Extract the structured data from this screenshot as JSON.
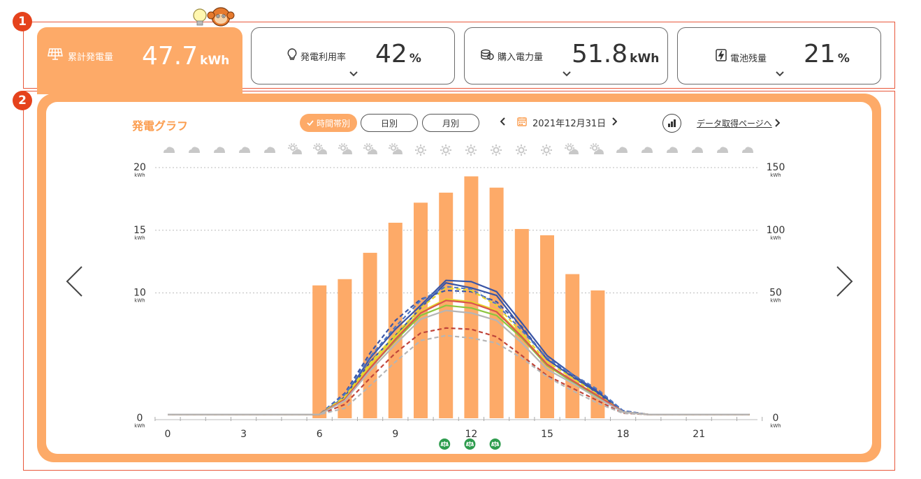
{
  "markers": [
    "1",
    "2"
  ],
  "cards": [
    {
      "id": "cumulative",
      "label": "累計発電量",
      "value": "47.7",
      "unit": "kWh",
      "icon": "solar-panel-icon",
      "active": true
    },
    {
      "id": "usage",
      "label": "発電利用率",
      "value": "42",
      "unit": "%",
      "icon": "lightbulb-icon",
      "active": false
    },
    {
      "id": "purchase",
      "label": "購入電力量",
      "value": "51.8",
      "unit": "kWh",
      "icon": "coins-icon",
      "active": false
    },
    {
      "id": "battery",
      "label": "電池残量",
      "value": "21",
      "unit": "%",
      "icon": "battery-bolt-icon",
      "active": false
    }
  ],
  "graph": {
    "title": "発電グラフ",
    "view_tabs": [
      "時間帯別",
      "日別",
      "月別"
    ],
    "active_tab": "時間帯別",
    "date": "2021年12月31日",
    "data_link": "データ取得ページへ"
  },
  "weather": [
    "cloudy",
    "cloudy",
    "cloudy",
    "cloudy",
    "cloudy",
    "partly-sunny",
    "partly-sunny",
    "partly-sunny",
    "partly-sunny",
    "partly-sunny",
    "sunny",
    "sunny",
    "sunny",
    "sunny",
    "sunny",
    "sunny",
    "partly-sunny",
    "partly-sunny",
    "cloudy",
    "cloudy",
    "cloudy",
    "cloudy",
    "cloudy",
    "cloudy"
  ],
  "colors": {
    "accent": "#fdaa68",
    "title": "#fb9d4f",
    "marker": "#e5421c",
    "event": "#2e9c4e"
  },
  "chart_data": {
    "type": "bar",
    "x": [
      0,
      1,
      2,
      3,
      4,
      5,
      6,
      7,
      8,
      9,
      10,
      11,
      12,
      13,
      14,
      15,
      16,
      17,
      18,
      19,
      20,
      21,
      22,
      23
    ],
    "xticks": [
      0,
      3,
      6,
      9,
      12,
      15,
      18,
      21
    ],
    "unit": "kWh",
    "left_axis": {
      "ticks": [
        0,
        10,
        15,
        20
      ],
      "ylim": [
        0,
        20
      ]
    },
    "right_axis": {
      "ticks": [
        0,
        50,
        100,
        150
      ],
      "ylim": [
        0,
        150
      ]
    },
    "bars": [
      0,
      0,
      0,
      0,
      0,
      0,
      10.6,
      11.1,
      13.2,
      15.6,
      17.2,
      18.0,
      19.3,
      18.4,
      15.1,
      14.6,
      11.5,
      10.2,
      0,
      0,
      0,
      0,
      0,
      0
    ],
    "series": [
      {
        "color": "#3a55a6",
        "style": "solid",
        "values": [
          0.3,
          0.3,
          0.3,
          0.3,
          0.3,
          0.3,
          0.3,
          1.6,
          4.5,
          6.6,
          8.8,
          10.8,
          10.4,
          9.8,
          7.2,
          4.7,
          3.3,
          2.0,
          0.5,
          0.3,
          0.3,
          0.3,
          0.3,
          0.3
        ]
      },
      {
        "color": "#3a55a6",
        "style": "solid",
        "values": [
          0.3,
          0.3,
          0.3,
          0.3,
          0.3,
          0.3,
          0.3,
          1.7,
          4.8,
          7.1,
          9.0,
          11.0,
          10.9,
          10.1,
          7.6,
          5.0,
          3.5,
          2.1,
          0.5,
          0.3,
          0.3,
          0.3,
          0.3,
          0.3
        ]
      },
      {
        "color": "#3a55a6",
        "style": "dashed",
        "values": [
          0.3,
          0.3,
          0.3,
          0.3,
          0.3,
          0.3,
          0.3,
          2.0,
          5.2,
          7.8,
          9.5,
          10.2,
          10.1,
          9.3,
          7.3,
          4.7,
          3.4,
          2.2,
          0.6,
          0.3,
          0.3,
          0.3,
          0.3,
          0.3
        ]
      },
      {
        "color": "#4f78c4",
        "style": "dashed",
        "values": [
          0.3,
          0.3,
          0.3,
          0.3,
          0.3,
          0.3,
          0.3,
          1.9,
          4.9,
          7.3,
          9.4,
          10.5,
          10.3,
          9.1,
          7.0,
          4.8,
          3.5,
          2.3,
          0.6,
          0.3,
          0.3,
          0.3,
          0.3,
          0.3
        ]
      },
      {
        "color": "#e7d62c",
        "style": "solid",
        "values": [
          0.3,
          0.3,
          0.3,
          0.3,
          0.3,
          0.3,
          0.3,
          1.6,
          4.2,
          6.5,
          8.5,
          9.5,
          9.3,
          8.6,
          6.6,
          4.3,
          3.0,
          1.8,
          0.5,
          0.3,
          0.3,
          0.3,
          0.3,
          0.3
        ]
      },
      {
        "color": "#e7d62c",
        "style": "dashed",
        "values": [
          0.3,
          0.3,
          0.3,
          0.3,
          0.3,
          0.3,
          0.3,
          1.7,
          4.4,
          6.7,
          8.8,
          10.4,
          10.2,
          9.0,
          6.8,
          4.5,
          3.2,
          1.9,
          0.5,
          0.3,
          0.3,
          0.3,
          0.3,
          0.3
        ]
      },
      {
        "color": "#8cc63f",
        "style": "solid",
        "values": [
          0.3,
          0.3,
          0.3,
          0.3,
          0.3,
          0.3,
          0.3,
          1.5,
          4.0,
          6.2,
          8.2,
          9.0,
          8.8,
          8.2,
          6.4,
          4.2,
          2.9,
          1.7,
          0.5,
          0.3,
          0.3,
          0.3,
          0.3,
          0.3
        ]
      },
      {
        "color": "#d9534f",
        "style": "solid",
        "values": [
          0.3,
          0.3,
          0.3,
          0.3,
          0.3,
          0.3,
          0.3,
          1.5,
          4.0,
          6.3,
          8.4,
          9.4,
          9.2,
          8.5,
          6.5,
          4.3,
          3.0,
          1.8,
          0.5,
          0.3,
          0.3,
          0.3,
          0.3,
          0.3
        ]
      },
      {
        "color": "#c0453a",
        "style": "dashed",
        "values": [
          0.3,
          0.3,
          0.3,
          0.3,
          0.3,
          0.3,
          0.3,
          1.1,
          3.2,
          5.2,
          6.8,
          7.2,
          7.1,
          6.5,
          5.0,
          3.4,
          2.4,
          1.4,
          0.4,
          0.3,
          0.3,
          0.3,
          0.3,
          0.3
        ]
      },
      {
        "color": "#b5b5b5",
        "style": "solid",
        "values": [
          0.3,
          0.3,
          0.3,
          0.3,
          0.3,
          0.3,
          0.3,
          1.4,
          3.8,
          5.9,
          7.9,
          8.6,
          8.4,
          7.8,
          6.0,
          3.9,
          2.8,
          1.6,
          0.5,
          0.3,
          0.3,
          0.3,
          0.3,
          0.3
        ]
      },
      {
        "color": "#b5b5b5",
        "style": "dashed",
        "values": [
          0.3,
          0.3,
          0.3,
          0.3,
          0.3,
          0.3,
          0.3,
          0.8,
          2.6,
          4.5,
          6.2,
          6.6,
          6.4,
          6.0,
          4.8,
          3.3,
          2.2,
          1.2,
          0.4,
          0.3,
          0.3,
          0.3,
          0.3,
          0.3
        ]
      }
    ],
    "events": [
      11,
      12,
      13
    ]
  }
}
